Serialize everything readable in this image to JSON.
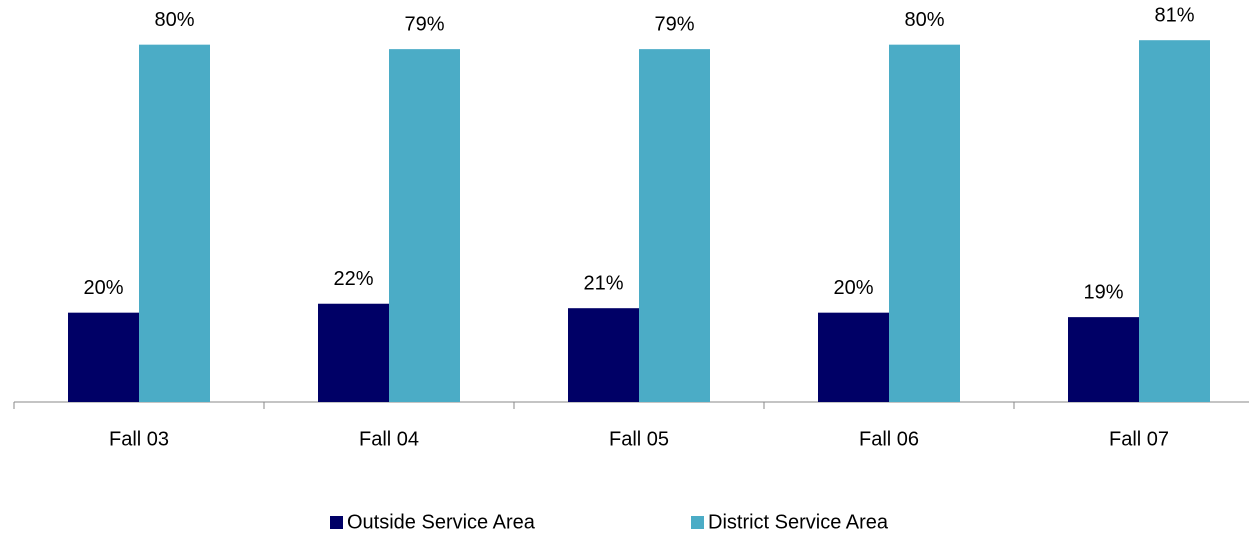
{
  "chart_data": {
    "type": "bar",
    "categories": [
      "Fall 03",
      "Fall 04",
      "Fall 05",
      "Fall 06",
      "Fall 07"
    ],
    "series": [
      {
        "name": "Outside Service Area",
        "color": "#000066",
        "values": [
          20,
          22,
          21,
          20,
          19
        ],
        "value_labels": [
          "20%",
          "22%",
          "21%",
          "20%",
          "19%"
        ]
      },
      {
        "name": "District Service Area",
        "color": "#4bacc6",
        "values": [
          80,
          79,
          79,
          80,
          81
        ],
        "value_labels": [
          "80%",
          "79%",
          "79%",
          "80%",
          "81%"
        ]
      }
    ],
    "ylim": [
      0,
      90
    ],
    "legend": "bottom"
  }
}
